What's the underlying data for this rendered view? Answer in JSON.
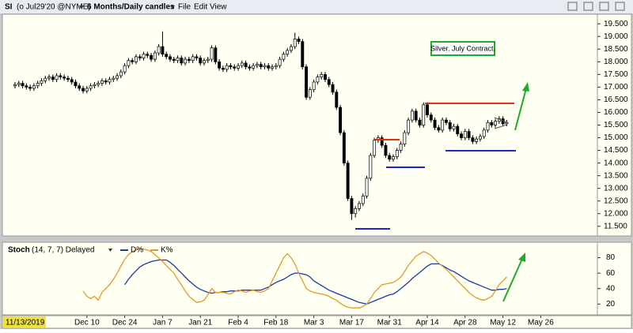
{
  "chart_data": {
    "type": "candlestick",
    "toolbar": {
      "symbol": "SI",
      "contract": "(o Jul29'20 @NYME)",
      "interval": "6 Months/Daily candles",
      "menus": [
        "File",
        "Edit",
        "View"
      ]
    },
    "annotation": "Silver. July Contract.",
    "cursor_date": "11/13/2019",
    "categories": [
      null,
      null,
      null,
      null,
      null,
      null,
      null,
      null,
      null,
      null,
      null,
      null,
      null,
      null,
      null,
      null,
      null,
      null,
      null,
      "Dec 10",
      null,
      null,
      null,
      null,
      null,
      null,
      null,
      null,
      null,
      "Dec 24",
      null,
      null,
      null,
      null,
      null,
      null,
      null,
      null,
      null,
      "Jan 7",
      null,
      null,
      null,
      null,
      null,
      null,
      null,
      null,
      null,
      "Jan 21",
      null,
      null,
      null,
      null,
      null,
      null,
      null,
      null,
      null,
      "Feb 4",
      null,
      null,
      null,
      null,
      null,
      null,
      null,
      null,
      null,
      "Feb 18",
      null,
      null,
      null,
      null,
      null,
      null,
      null,
      null,
      null,
      "Mar 3",
      null,
      null,
      null,
      null,
      null,
      null,
      null,
      null,
      null,
      "Mar 17",
      null,
      null,
      null,
      null,
      null,
      null,
      null,
      null,
      null,
      "Mar 31",
      null,
      null,
      null,
      null,
      null,
      null,
      null,
      null,
      null,
      "Apr 14",
      null,
      null,
      null,
      null,
      null,
      null,
      null,
      null,
      null,
      "Apr 28",
      null,
      null,
      null,
      null,
      null,
      null,
      null,
      null,
      null,
      "May 12",
      null,
      null,
      null,
      null,
      null,
      null,
      null,
      null,
      null,
      "May 26"
    ],
    "open": [
      17.05,
      17.1,
      17.15,
      17.05,
      17.0,
      16.95,
      17.05,
      17.15,
      17.25,
      17.35,
      17.4,
      17.3,
      17.45,
      17.4,
      17.35,
      17.3,
      17.2,
      17.05,
      16.95,
      16.85,
      16.95,
      17.05,
      17.1,
      17.15,
      17.25,
      17.2,
      17.3,
      17.35,
      17.45,
      17.6,
      17.85,
      18.05,
      18.0,
      18.2,
      18.15,
      18.3,
      18.25,
      18.1,
      18.35,
      18.6,
      18.3,
      18.2,
      18.1,
      18.05,
      18.15,
      17.95,
      18.1,
      18.05,
      18.2,
      18.15,
      17.95,
      18.05,
      18.1,
      18.55,
      18.0,
      17.75,
      17.7,
      17.85,
      17.8,
      17.75,
      17.85,
      17.95,
      17.8,
      17.75,
      17.85,
      17.9,
      17.8,
      17.85,
      17.75,
      17.8,
      17.85,
      18.1,
      18.3,
      18.45,
      18.6,
      18.9,
      18.8,
      17.8,
      16.6,
      16.9,
      17.2,
      17.4,
      17.5,
      17.3,
      17.1,
      16.8,
      16.2,
      15.2,
      14.0,
      12.6,
      12.0,
      12.2,
      12.4,
      12.7,
      13.4,
      14.3,
      14.9,
      15.0,
      14.7,
      14.3,
      14.15,
      14.25,
      14.5,
      14.75,
      15.2,
      15.7,
      16.05,
      15.7,
      15.5,
      16.3,
      15.9,
      15.7,
      15.4,
      15.3,
      15.7,
      15.6,
      15.35,
      15.45,
      15.15,
      15.0,
      15.25,
      15.0,
      14.85,
      14.95,
      15.05,
      15.3,
      15.6,
      15.5,
      15.65,
      15.75,
      15.55,
      null,
      null,
      null,
      null,
      null,
      null,
      null,
      null,
      null
    ],
    "high": [
      17.2,
      17.25,
      17.25,
      17.15,
      17.1,
      17.15,
      17.25,
      17.35,
      17.45,
      17.5,
      17.5,
      17.55,
      17.55,
      17.5,
      17.45,
      17.4,
      17.3,
      17.15,
      17.05,
      17.05,
      17.15,
      17.2,
      17.25,
      17.35,
      17.35,
      17.4,
      17.45,
      17.55,
      17.7,
      17.95,
      18.15,
      18.15,
      18.3,
      18.3,
      18.4,
      18.4,
      18.35,
      18.45,
      18.7,
      19.2,
      18.4,
      18.3,
      18.2,
      18.25,
      18.25,
      18.2,
      18.2,
      18.3,
      18.3,
      18.25,
      18.15,
      18.2,
      18.65,
      18.65,
      18.1,
      17.85,
      17.95,
      17.95,
      17.9,
      17.95,
      18.05,
      18.05,
      17.9,
      17.95,
      18.0,
      18.0,
      17.95,
      17.95,
      17.9,
      17.95,
      18.2,
      18.4,
      18.55,
      18.7,
      19.15,
      19.0,
      18.9,
      17.9,
      17.0,
      17.3,
      17.5,
      17.6,
      17.6,
      17.4,
      17.2,
      16.9,
      16.3,
      15.3,
      14.1,
      12.7,
      12.3,
      12.5,
      12.8,
      13.5,
      14.4,
      15.0,
      15.1,
      15.1,
      14.8,
      14.4,
      14.35,
      14.6,
      14.85,
      15.3,
      15.8,
      16.15,
      16.15,
      15.8,
      16.4,
      16.4,
      16.0,
      15.8,
      15.5,
      15.8,
      15.8,
      15.7,
      15.55,
      15.55,
      15.25,
      15.35,
      15.35,
      15.1,
      15.05,
      15.15,
      15.4,
      15.7,
      15.7,
      15.75,
      15.85,
      15.85,
      15.7,
      null,
      null,
      null,
      null,
      null,
      null,
      null,
      null,
      null
    ],
    "low": [
      16.95,
      17.0,
      16.95,
      16.9,
      16.85,
      16.85,
      16.95,
      17.05,
      17.15,
      17.25,
      17.2,
      17.2,
      17.3,
      17.25,
      17.2,
      17.1,
      16.95,
      16.85,
      16.75,
      16.75,
      16.85,
      16.95,
      17.0,
      17.05,
      17.1,
      17.1,
      17.2,
      17.25,
      17.35,
      17.5,
      17.75,
      17.9,
      17.9,
      18.05,
      18.05,
      18.15,
      18.0,
      18.0,
      18.25,
      18.2,
      18.1,
      18.0,
      17.95,
      17.95,
      17.85,
      17.85,
      17.95,
      17.95,
      18.05,
      17.85,
      17.85,
      17.95,
      18.0,
      17.9,
      17.65,
      17.6,
      17.6,
      17.7,
      17.65,
      17.65,
      17.75,
      17.7,
      17.65,
      17.65,
      17.75,
      17.7,
      17.7,
      17.65,
      17.65,
      17.7,
      17.75,
      18.0,
      18.2,
      18.35,
      18.5,
      18.7,
      17.7,
      16.5,
      16.5,
      16.8,
      17.1,
      17.3,
      17.2,
      17.0,
      16.7,
      16.1,
      15.1,
      13.9,
      12.5,
      11.75,
      11.85,
      12.1,
      12.3,
      12.6,
      13.3,
      14.2,
      14.8,
      14.6,
      14.2,
      14.05,
      14.05,
      14.15,
      14.4,
      14.65,
      15.1,
      15.6,
      15.6,
      15.4,
      15.4,
      15.8,
      15.6,
      15.3,
      15.2,
      15.2,
      15.5,
      15.25,
      15.25,
      15.05,
      14.9,
      14.9,
      14.9,
      14.75,
      14.75,
      14.85,
      14.95,
      15.2,
      15.4,
      15.4,
      15.55,
      15.45,
      15.45,
      null,
      null,
      null,
      null,
      null,
      null,
      null,
      null,
      null
    ],
    "close": [
      17.1,
      17.15,
      17.05,
      17.0,
      16.95,
      17.05,
      17.15,
      17.25,
      17.35,
      17.4,
      17.3,
      17.45,
      17.4,
      17.35,
      17.3,
      17.2,
      17.05,
      16.95,
      16.85,
      16.95,
      17.05,
      17.1,
      17.15,
      17.25,
      17.2,
      17.3,
      17.35,
      17.45,
      17.6,
      17.85,
      18.05,
      18.0,
      18.2,
      18.15,
      18.3,
      18.25,
      18.1,
      18.35,
      18.6,
      18.3,
      18.2,
      18.1,
      18.05,
      18.15,
      17.95,
      18.1,
      18.05,
      18.2,
      18.15,
      17.95,
      18.05,
      18.1,
      18.55,
      18.0,
      17.75,
      17.7,
      17.85,
      17.8,
      17.75,
      17.85,
      17.95,
      17.8,
      17.75,
      17.85,
      17.9,
      17.8,
      17.85,
      17.75,
      17.8,
      17.85,
      18.1,
      18.3,
      18.45,
      18.6,
      18.9,
      18.8,
      17.8,
      16.6,
      16.9,
      17.2,
      17.4,
      17.5,
      17.3,
      17.1,
      16.8,
      16.2,
      15.2,
      14.0,
      12.6,
      12.0,
      12.2,
      12.4,
      12.7,
      13.4,
      14.3,
      14.9,
      15.0,
      14.7,
      14.3,
      14.15,
      14.25,
      14.5,
      14.75,
      15.2,
      15.7,
      16.05,
      15.7,
      15.5,
      16.3,
      15.9,
      15.7,
      15.4,
      15.3,
      15.7,
      15.6,
      15.35,
      15.45,
      15.15,
      15.0,
      15.25,
      15.0,
      14.85,
      14.95,
      15.05,
      15.3,
      15.6,
      15.5,
      15.65,
      15.75,
      15.55,
      15.6,
      null,
      null,
      null,
      null,
      null,
      null,
      null,
      null,
      null
    ],
    "up_color": "#ffffff",
    "down_color": "#000000",
    "ylim": [
      11.12,
      19.88
    ],
    "yticks": [
      {
        "value": 11.5,
        "label": "11.500"
      },
      {
        "value": 12,
        "label": "12.000"
      },
      {
        "value": 12.5,
        "label": "12.500"
      },
      {
        "value": 13,
        "label": "13.000"
      },
      {
        "value": 13.5,
        "label": "13.500"
      },
      {
        "value": 14,
        "label": "14.000"
      },
      {
        "value": 14.5,
        "label": "14.500"
      },
      {
        "value": 15,
        "label": "15.000"
      },
      {
        "value": 15.5,
        "label": "15.500"
      },
      {
        "value": 16,
        "label": "16.000"
      },
      {
        "value": 16.5,
        "label": "16.500"
      },
      {
        "value": 17,
        "label": "17.000"
      },
      {
        "value": 17.5,
        "label": "17.500"
      },
      {
        "value": 18,
        "label": "18.000"
      },
      {
        "value": 18.5,
        "label": "18.500"
      },
      {
        "value": 19,
        "label": "19.000"
      },
      {
        "value": 19.5,
        "label": "19.500"
      }
    ],
    "grid": false,
    "stoch": {
      "title": "Stoch",
      "params": "(14, 7, 7) Delayed",
      "ylim": [
        6,
        100
      ],
      "yticks": [
        20,
        40,
        60,
        80
      ],
      "series": [
        {
          "name": "D%",
          "color": "#1a3aa8",
          "values": [
            null,
            null,
            null,
            null,
            null,
            null,
            null,
            null,
            null,
            null,
            null,
            null,
            null,
            null,
            null,
            null,
            null,
            null,
            null,
            null,
            null,
            null,
            null,
            null,
            null,
            null,
            null,
            null,
            null,
            45,
            52,
            58,
            63,
            68,
            71,
            73,
            75,
            76,
            77,
            77,
            77,
            74,
            70,
            65,
            60,
            55,
            50,
            46,
            42,
            39,
            37,
            35,
            34,
            35,
            35,
            36,
            36,
            37,
            37,
            37,
            38,
            38,
            38,
            38,
            38,
            38,
            40,
            42,
            45,
            48,
            50,
            52,
            55,
            58,
            60,
            60,
            59,
            58,
            55,
            50,
            47,
            44,
            41,
            38,
            36,
            34,
            32,
            30,
            28,
            26,
            24,
            22,
            21,
            20,
            22,
            24,
            26,
            28,
            30,
            32,
            33,
            36,
            40,
            44,
            48,
            53,
            57,
            61,
            65,
            69,
            72,
            72,
            72,
            70,
            67,
            64,
            62,
            59,
            56,
            53,
            50,
            48,
            46,
            44,
            42,
            40,
            38,
            38,
            39,
            39,
            40,
            null,
            null,
            null,
            null,
            null,
            null,
            null,
            null,
            null
          ]
        },
        {
          "name": "K%",
          "color": "#e09a28",
          "values": [
            null,
            null,
            null,
            null,
            null,
            null,
            null,
            null,
            null,
            null,
            null,
            null,
            null,
            null,
            null,
            null,
            null,
            null,
            37,
            30,
            27,
            30,
            25,
            35,
            40,
            45,
            52,
            60,
            69,
            78,
            84,
            88,
            90,
            92,
            91,
            90,
            88,
            84,
            80,
            75,
            70,
            65,
            60,
            52,
            45,
            37,
            30,
            26,
            22,
            23,
            25,
            32,
            40,
            35,
            35,
            35,
            34,
            33,
            36,
            38,
            37,
            35,
            37,
            38,
            36,
            35,
            37,
            40,
            50,
            60,
            70,
            80,
            85,
            80,
            72,
            60,
            50,
            40,
            37,
            35,
            34,
            33,
            32,
            30,
            27,
            25,
            21,
            18,
            16,
            15,
            15,
            15,
            17,
            20,
            27,
            35,
            40,
            45,
            46,
            47,
            48,
            51,
            55,
            62,
            70,
            76,
            82,
            85,
            88,
            86,
            83,
            78,
            73,
            69,
            65,
            60,
            55,
            50,
            45,
            40,
            35,
            31,
            28,
            26,
            25,
            27,
            30,
            37,
            45,
            50,
            55,
            null,
            null,
            null,
            null,
            null,
            null,
            null,
            null,
            null
          ]
        }
      ]
    }
  }
}
